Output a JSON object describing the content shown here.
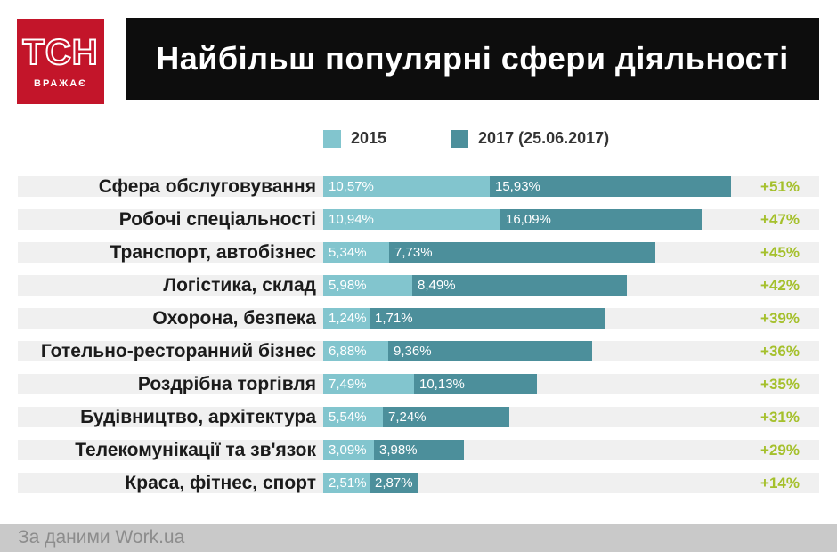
{
  "brand": {
    "logo_text": "ТСН",
    "logo_tagline": "ВРАЖАЄ",
    "logo_bg": "#c3152a"
  },
  "header": {
    "title": "Найбільш популярні сфери діяльності",
    "bg": "#0d0d0d"
  },
  "legend": {
    "items": [
      {
        "label": "2015",
        "color": "#82c5ce"
      },
      {
        "label": "2017 (25.06.2017)",
        "color": "#4c8f9b"
      }
    ]
  },
  "footer": {
    "text": "За даними Work.ua"
  },
  "chart_data": {
    "type": "bar",
    "orientation": "horizontal",
    "title": "Найбільш популярні сфери діяльності",
    "legend_position": "top",
    "series_names": [
      "2015",
      "2017 (25.06.2017)"
    ],
    "colors": {
      "bar_2015": "#82c5ce",
      "bar_2017": "#4c8f9b",
      "growth_label": "#a5c02c",
      "row_bg": "#f0f0f0"
    },
    "rows": [
      {
        "label": "Сфера обслуговування",
        "value_2015": 10.57,
        "value_2017": 15.93,
        "label_2015": "10,57%",
        "label_2017": "15,93%",
        "growth": "+51%",
        "growth_pct": 51,
        "bar_w_2015": 187,
        "bar_w_2017": 271
      },
      {
        "label": "Робочі спеціальності",
        "value_2015": 10.94,
        "value_2017": 16.09,
        "label_2015": "10,94%",
        "label_2017": "16,09%",
        "growth": "+47%",
        "growth_pct": 47,
        "bar_w_2015": 199,
        "bar_w_2017": 226
      },
      {
        "label": "Транспорт, автобізнес",
        "value_2015": 5.34,
        "value_2017": 7.73,
        "label_2015": "5,34%",
        "label_2017": "7,73%",
        "growth": "+45%",
        "growth_pct": 45,
        "bar_w_2015": 74,
        "bar_w_2017": 299
      },
      {
        "label": "Логістика, склад",
        "value_2015": 5.98,
        "value_2017": 8.49,
        "label_2015": "5,98%",
        "label_2017": "8,49%",
        "growth": "+42%",
        "growth_pct": 42,
        "bar_w_2015": 100,
        "bar_w_2017": 241
      },
      {
        "label": "Охорона, безпека",
        "value_2015": 1.24,
        "value_2017": 1.71,
        "label_2015": "1,24%",
        "label_2017": "1,71%",
        "growth": "+39%",
        "growth_pct": 39,
        "bar_w_2015": 52,
        "bar_w_2017": 265
      },
      {
        "label": "Готельно-ресторанний бізнес",
        "value_2015": 6.88,
        "value_2017": 9.36,
        "label_2015": "6,88%",
        "label_2017": "9,36%",
        "growth": "+36%",
        "growth_pct": 36,
        "bar_w_2015": 73,
        "bar_w_2017": 229
      },
      {
        "label": "Роздрібна торгівля",
        "value_2015": 7.49,
        "value_2017": 10.13,
        "label_2015": "7,49%",
        "label_2017": "10,13%",
        "growth": "+35%",
        "growth_pct": 35,
        "bar_w_2015": 102,
        "bar_w_2017": 138
      },
      {
        "label": "Будівництво, архітектура",
        "value_2015": 5.54,
        "value_2017": 7.24,
        "label_2015": "5,54%",
        "label_2017": "7,24%",
        "growth": "+31%",
        "growth_pct": 31,
        "bar_w_2015": 67,
        "bar_w_2017": 142
      },
      {
        "label": "Телекомунікації та зв'язок",
        "value_2015": 3.09,
        "value_2017": 3.98,
        "label_2015": "3,09%",
        "label_2017": "3,98%",
        "growth": "+29%",
        "growth_pct": 29,
        "bar_w_2015": 57,
        "bar_w_2017": 101
      },
      {
        "label": "Краса, фітнес, спорт",
        "value_2015": 2.51,
        "value_2017": 2.87,
        "label_2015": "2,51%",
        "label_2017": "2,87%",
        "growth": "+14%",
        "growth_pct": 14,
        "bar_w_2015": 52,
        "bar_w_2017": 55
      }
    ]
  }
}
